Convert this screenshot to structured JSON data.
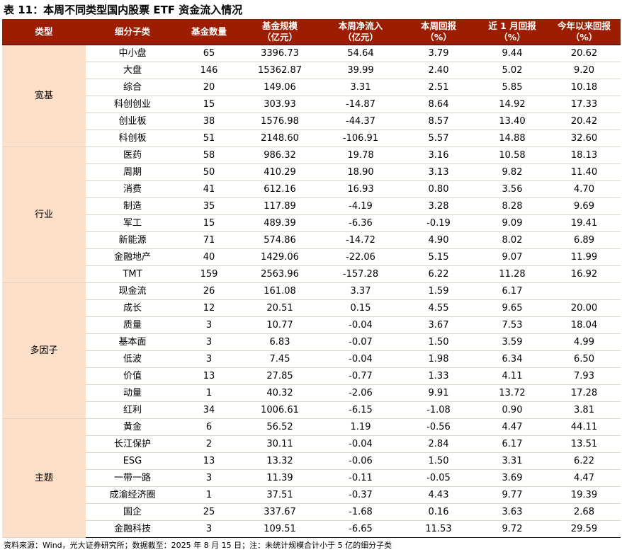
{
  "title": "表 11：本周不同类型国内股票 ETF 资金流入情况",
  "footer": "资料来源：Wind，光大证券研究所；数据截至：2025 年 8 月 15 日；注：未统计规模合计小于 5 亿的细分子类",
  "colors": {
    "header_bg": "#9C1D01",
    "header_text": "#FFFFFF",
    "group_bg": "#FBDFC9",
    "row_border": "#E6D2C3",
    "group_border": "#141414"
  },
  "table": {
    "columns": [
      {
        "label": "类型",
        "sub": ""
      },
      {
        "label": "细分子类",
        "sub": ""
      },
      {
        "label": "基金数量",
        "sub": ""
      },
      {
        "label": "基金规模",
        "sub": "（亿元）"
      },
      {
        "label": "本周净流入",
        "sub": "（亿元）"
      },
      {
        "label": "本周回报",
        "sub": "（%）"
      },
      {
        "label": "近 1 月回报",
        "sub": "（%）"
      },
      {
        "label": "今年以来回报",
        "sub": "（%）"
      }
    ],
    "groups": [
      {
        "type": "宽基",
        "rows": [
          [
            "中小盘",
            "65",
            "3396.73",
            "54.64",
            "3.79",
            "9.44",
            "20.62"
          ],
          [
            "大盘",
            "146",
            "15362.87",
            "39.99",
            "2.40",
            "5.02",
            "9.20"
          ],
          [
            "综合",
            "20",
            "149.06",
            "3.31",
            "2.51",
            "5.85",
            "10.18"
          ],
          [
            "科创创业",
            "15",
            "303.93",
            "-14.87",
            "8.64",
            "14.92",
            "17.33"
          ],
          [
            "创业板",
            "38",
            "1576.98",
            "-44.37",
            "8.57",
            "13.40",
            "20.42"
          ],
          [
            "科创板",
            "51",
            "2148.60",
            "-106.91",
            "5.57",
            "14.88",
            "32.60"
          ]
        ]
      },
      {
        "type": "行业",
        "rows": [
          [
            "医药",
            "58",
            "986.32",
            "19.78",
            "3.16",
            "10.58",
            "18.13"
          ],
          [
            "周期",
            "50",
            "410.29",
            "18.90",
            "3.13",
            "9.82",
            "11.40"
          ],
          [
            "消费",
            "41",
            "612.16",
            "16.93",
            "0.80",
            "3.56",
            "4.70"
          ],
          [
            "制造",
            "35",
            "117.89",
            "-4.19",
            "3.28",
            "8.28",
            "9.69"
          ],
          [
            "军工",
            "15",
            "489.39",
            "-6.36",
            "-0.19",
            "9.09",
            "19.41"
          ],
          [
            "新能源",
            "71",
            "574.86",
            "-14.72",
            "4.90",
            "8.02",
            "6.89"
          ],
          [
            "金融地产",
            "40",
            "1429.06",
            "-22.06",
            "5.15",
            "9.07",
            "11.99"
          ],
          [
            "TMT",
            "159",
            "2563.96",
            "-157.28",
            "6.22",
            "11.28",
            "16.92"
          ]
        ]
      },
      {
        "type": "多因子",
        "rows": [
          [
            "现金流",
            "26",
            "161.08",
            "3.37",
            "1.59",
            "6.17",
            ""
          ],
          [
            "成长",
            "12",
            "20.51",
            "0.15",
            "4.55",
            "9.65",
            "20.00"
          ],
          [
            "质量",
            "3",
            "10.77",
            "-0.04",
            "3.67",
            "7.53",
            "18.04"
          ],
          [
            "基本面",
            "3",
            "6.83",
            "-0.07",
            "1.50",
            "3.59",
            "4.99"
          ],
          [
            "低波",
            "3",
            "7.45",
            "-0.04",
            "1.98",
            "6.34",
            "6.50"
          ],
          [
            "价值",
            "13",
            "27.85",
            "-0.77",
            "1.33",
            "4.11",
            "7.93"
          ],
          [
            "动量",
            "1",
            "40.32",
            "-2.06",
            "9.91",
            "13.72",
            "17.28"
          ],
          [
            "红利",
            "34",
            "1006.61",
            "-6.15",
            "-1.08",
            "0.90",
            "3.81"
          ]
        ]
      },
      {
        "type": "主题",
        "rows": [
          [
            "黄金",
            "6",
            "56.52",
            "1.19",
            "-0.56",
            "4.47",
            "44.11"
          ],
          [
            "长江保护",
            "2",
            "30.11",
            "-0.04",
            "2.84",
            "6.17",
            "13.51"
          ],
          [
            "ESG",
            "13",
            "13.32",
            "-0.06",
            "1.50",
            "3.31",
            "6.22"
          ],
          [
            "一带一路",
            "3",
            "11.39",
            "-0.11",
            "-0.05",
            "3.69",
            "4.47"
          ],
          [
            "成渝经济圈",
            "1",
            "37.51",
            "-0.37",
            "4.43",
            "9.77",
            "19.39"
          ],
          [
            "国企",
            "25",
            "337.67",
            "-1.68",
            "0.16",
            "3.63",
            "2.68"
          ],
          [
            "金融科技",
            "3",
            "109.51",
            "-6.65",
            "11.53",
            "9.72",
            "29.59"
          ]
        ]
      }
    ]
  }
}
